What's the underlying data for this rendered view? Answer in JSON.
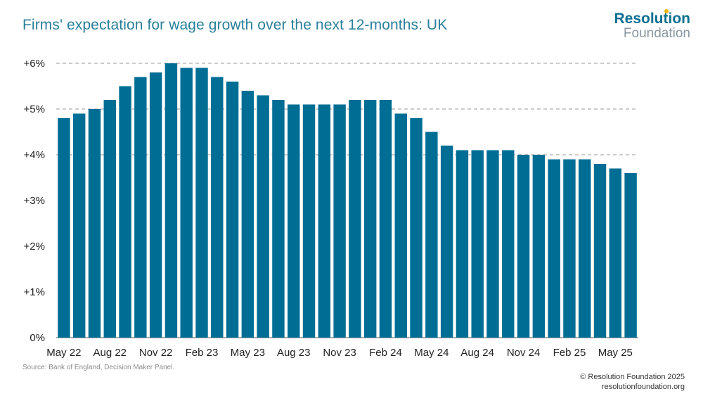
{
  "header": {
    "title": "Firms' expectation for wage growth over the next 12-months: UK"
  },
  "logo": {
    "line1": "Resolution",
    "line2": "Foundation"
  },
  "footer": {
    "source": "Source: Bank of England, Decision Maker Panel.",
    "copyright": "© Resolution Foundation 2025",
    "website": "resolutionfoundation.org"
  },
  "colors": {
    "bar": "#006e94",
    "title": "#2a7f9a",
    "grid": "#999999"
  },
  "chart_data": {
    "type": "bar",
    "title": "Firms' expectation for wage growth over the next 12-months: UK",
    "xlabel": "",
    "ylabel": "",
    "ylim": [
      0,
      6
    ],
    "yticks": [
      0,
      1,
      2,
      3,
      4,
      5,
      6
    ],
    "ytick_labels": [
      "0%",
      "+1%",
      "+2%",
      "+3%",
      "+4%",
      "+5%",
      "+6%"
    ],
    "grid": "dashed horizontal lines at 4%, 5%, 6%",
    "categories": [
      "May 22",
      "Jun 22",
      "Jul 22",
      "Aug 22",
      "Sep 22",
      "Oct 22",
      "Nov 22",
      "Dec 22",
      "Jan 23",
      "Feb 23",
      "Mar 23",
      "Apr 23",
      "May 23",
      "Jun 23",
      "Jul 23",
      "Aug 23",
      "Sep 23",
      "Oct 23",
      "Nov 23",
      "Dec 23",
      "Jan 24",
      "Feb 24",
      "Mar 24",
      "Apr 24",
      "May 24",
      "Jun 24",
      "Jul 24",
      "Aug 24",
      "Sep 24",
      "Oct 24",
      "Nov 24",
      "Dec 24",
      "Jan 25",
      "Feb 25",
      "Mar 25",
      "Apr 25",
      "May 25",
      "Jun 25"
    ],
    "xtick_labels": [
      {
        "index": 0,
        "label": "May 22"
      },
      {
        "index": 3,
        "label": "Aug 22"
      },
      {
        "index": 6,
        "label": "Nov 22"
      },
      {
        "index": 9,
        "label": "Feb 23"
      },
      {
        "index": 12,
        "label": "May 23"
      },
      {
        "index": 15,
        "label": "Aug 23"
      },
      {
        "index": 18,
        "label": "Nov 23"
      },
      {
        "index": 21,
        "label": "Feb 24"
      },
      {
        "index": 24,
        "label": "May 24"
      },
      {
        "index": 27,
        "label": "Aug 24"
      },
      {
        "index": 30,
        "label": "Nov 24"
      },
      {
        "index": 33,
        "label": "Feb 25"
      },
      {
        "index": 36,
        "label": "May 25"
      }
    ],
    "values": [
      4.8,
      4.9,
      5.0,
      5.2,
      5.5,
      5.7,
      5.8,
      6.0,
      5.9,
      5.9,
      5.7,
      5.6,
      5.4,
      5.3,
      5.2,
      5.1,
      5.1,
      5.1,
      5.1,
      5.2,
      5.2,
      5.2,
      4.9,
      4.8,
      4.5,
      4.2,
      4.1,
      4.1,
      4.1,
      4.1,
      4.0,
      4.0,
      3.9,
      3.9,
      3.9,
      3.8,
      3.7,
      3.6
    ]
  }
}
